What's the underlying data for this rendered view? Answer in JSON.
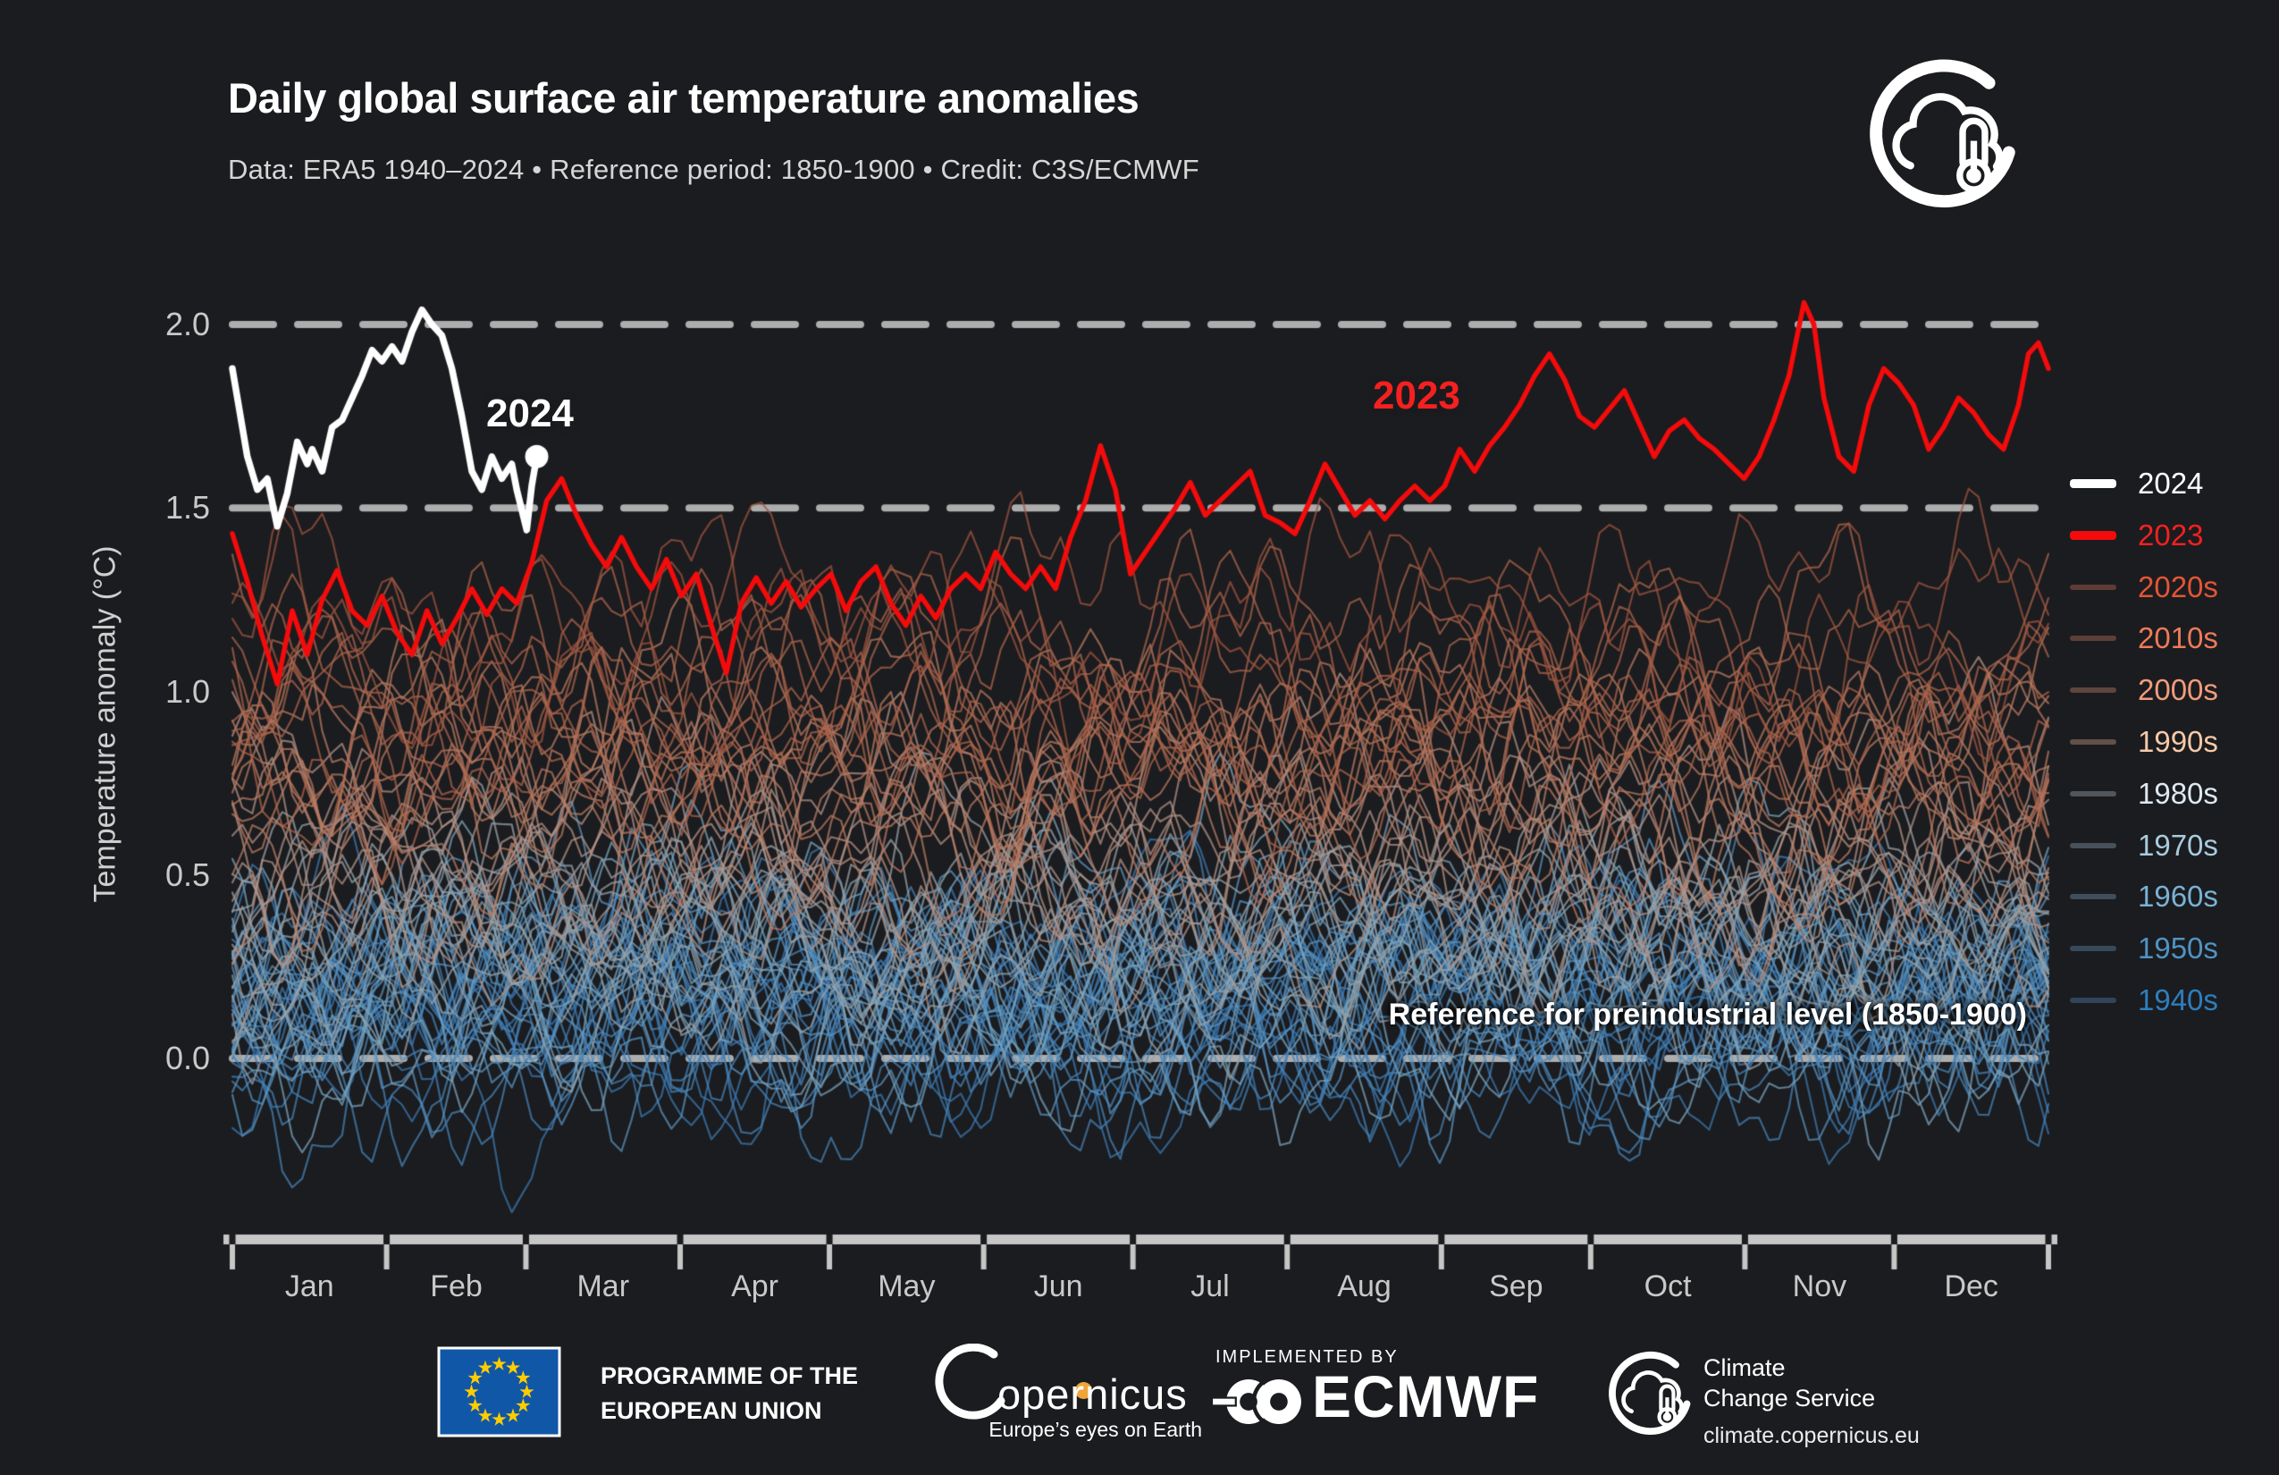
{
  "header": {
    "title": "Daily global surface air temperature anomalies",
    "subtitle": "Data: ERA5 1940–2024 • Reference period: 1850-1900 • Credit: C3S/ECMWF"
  },
  "chart_data": {
    "type": "line",
    "title": "Daily global surface air temperature anomalies",
    "ylabel": "Temperature anomaly (°C)",
    "xlabel": "",
    "x_months": [
      "Jan",
      "Feb",
      "Mar",
      "Apr",
      "May",
      "Jun",
      "Jul",
      "Aug",
      "Sep",
      "Oct",
      "Nov",
      "Dec"
    ],
    "month_boundary_days": [
      0,
      31,
      59,
      90,
      120,
      151,
      181,
      212,
      243,
      273,
      304,
      334,
      365
    ],
    "ylim": [
      -0.55,
      2.12
    ],
    "yticks": [
      2.0,
      1.5,
      1.0,
      0.5,
      0.0
    ],
    "ytick_labels": [
      "2.0",
      "1.5",
      "1.0",
      "0.5",
      "0.0"
    ],
    "reference_lines": [
      2.0,
      1.5,
      0.0
    ],
    "reference_annotation": "Reference for preindustrial level (1850-1900)",
    "grid_color": "#cdcdcd",
    "axis_color": "#c6c6c6",
    "series_2024": {
      "name": "2024",
      "color": "#ffffff",
      "line_width": 7.5,
      "end_marker": true,
      "points": [
        [
          1,
          1.88
        ],
        [
          2,
          1.8
        ],
        [
          4,
          1.64
        ],
        [
          6,
          1.55
        ],
        [
          8,
          1.58
        ],
        [
          10,
          1.45
        ],
        [
          12,
          1.54
        ],
        [
          14,
          1.68
        ],
        [
          16,
          1.62
        ],
        [
          17,
          1.66
        ],
        [
          19,
          1.6
        ],
        [
          21,
          1.72
        ],
        [
          23,
          1.74
        ],
        [
          25,
          1.8
        ],
        [
          27,
          1.86
        ],
        [
          29,
          1.93
        ],
        [
          31,
          1.9
        ],
        [
          33,
          1.94
        ],
        [
          35,
          1.9
        ],
        [
          37,
          1.98
        ],
        [
          39,
          2.04
        ],
        [
          41,
          2.0
        ],
        [
          43,
          1.97
        ],
        [
          45,
          1.88
        ],
        [
          47,
          1.75
        ],
        [
          49,
          1.6
        ],
        [
          51,
          1.55
        ],
        [
          53,
          1.64
        ],
        [
          55,
          1.58
        ],
        [
          57,
          1.62
        ],
        [
          58,
          1.55
        ],
        [
          60,
          1.44
        ],
        [
          61,
          1.56
        ],
        [
          62,
          1.64
        ]
      ]
    },
    "series_2023": {
      "name": "2023",
      "color": "#f40b0b",
      "line_width": 5.5,
      "end_marker": false,
      "points": [
        [
          1,
          1.43
        ],
        [
          4,
          1.3
        ],
        [
          7,
          1.15
        ],
        [
          10,
          1.02
        ],
        [
          13,
          1.22
        ],
        [
          16,
          1.1
        ],
        [
          19,
          1.25
        ],
        [
          22,
          1.33
        ],
        [
          25,
          1.22
        ],
        [
          28,
          1.18
        ],
        [
          31,
          1.26
        ],
        [
          34,
          1.16
        ],
        [
          37,
          1.1
        ],
        [
          40,
          1.22
        ],
        [
          43,
          1.13
        ],
        [
          46,
          1.2
        ],
        [
          49,
          1.28
        ],
        [
          52,
          1.21
        ],
        [
          55,
          1.28
        ],
        [
          58,
          1.24
        ],
        [
          61,
          1.35
        ],
        [
          64,
          1.52
        ],
        [
          67,
          1.58
        ],
        [
          70,
          1.48
        ],
        [
          73,
          1.4
        ],
        [
          76,
          1.34
        ],
        [
          79,
          1.42
        ],
        [
          82,
          1.34
        ],
        [
          85,
          1.28
        ],
        [
          88,
          1.36
        ],
        [
          91,
          1.26
        ],
        [
          94,
          1.32
        ],
        [
          97,
          1.18
        ],
        [
          100,
          1.05
        ],
        [
          103,
          1.24
        ],
        [
          106,
          1.31
        ],
        [
          109,
          1.24
        ],
        [
          112,
          1.3
        ],
        [
          115,
          1.23
        ],
        [
          118,
          1.28
        ],
        [
          121,
          1.32
        ],
        [
          124,
          1.22
        ],
        [
          127,
          1.3
        ],
        [
          130,
          1.34
        ],
        [
          133,
          1.24
        ],
        [
          136,
          1.18
        ],
        [
          139,
          1.26
        ],
        [
          142,
          1.2
        ],
        [
          145,
          1.28
        ],
        [
          148,
          1.32
        ],
        [
          151,
          1.28
        ],
        [
          154,
          1.38
        ],
        [
          157,
          1.32
        ],
        [
          160,
          1.28
        ],
        [
          163,
          1.34
        ],
        [
          166,
          1.28
        ],
        [
          169,
          1.42
        ],
        [
          172,
          1.52
        ],
        [
          175,
          1.67
        ],
        [
          178,
          1.55
        ],
        [
          181,
          1.32
        ],
        [
          184,
          1.38
        ],
        [
          187,
          1.44
        ],
        [
          190,
          1.5
        ],
        [
          193,
          1.57
        ],
        [
          196,
          1.48
        ],
        [
          199,
          1.52
        ],
        [
          202,
          1.56
        ],
        [
          205,
          1.6
        ],
        [
          208,
          1.48
        ],
        [
          211,
          1.46
        ],
        [
          214,
          1.43
        ],
        [
          217,
          1.52
        ],
        [
          220,
          1.62
        ],
        [
          223,
          1.55
        ],
        [
          226,
          1.48
        ],
        [
          229,
          1.52
        ],
        [
          232,
          1.47
        ],
        [
          235,
          1.52
        ],
        [
          238,
          1.56
        ],
        [
          241,
          1.52
        ],
        [
          244,
          1.56
        ],
        [
          247,
          1.66
        ],
        [
          250,
          1.6
        ],
        [
          253,
          1.67
        ],
        [
          256,
          1.72
        ],
        [
          259,
          1.78
        ],
        [
          262,
          1.86
        ],
        [
          265,
          1.92
        ],
        [
          268,
          1.85
        ],
        [
          271,
          1.75
        ],
        [
          274,
          1.72
        ],
        [
          277,
          1.77
        ],
        [
          280,
          1.82
        ],
        [
          283,
          1.73
        ],
        [
          286,
          1.64
        ],
        [
          289,
          1.71
        ],
        [
          292,
          1.74
        ],
        [
          295,
          1.69
        ],
        [
          298,
          1.66
        ],
        [
          301,
          1.62
        ],
        [
          304,
          1.58
        ],
        [
          307,
          1.64
        ],
        [
          310,
          1.74
        ],
        [
          313,
          1.86
        ],
        [
          316,
          2.06
        ],
        [
          318,
          2.0
        ],
        [
          320,
          1.8
        ],
        [
          323,
          1.64
        ],
        [
          326,
          1.6
        ],
        [
          329,
          1.78
        ],
        [
          332,
          1.88
        ],
        [
          335,
          1.84
        ],
        [
          338,
          1.78
        ],
        [
          341,
          1.66
        ],
        [
          344,
          1.72
        ],
        [
          347,
          1.8
        ],
        [
          350,
          1.76
        ],
        [
          353,
          1.7
        ],
        [
          356,
          1.66
        ],
        [
          359,
          1.78
        ],
        [
          361,
          1.92
        ],
        [
          363,
          1.95
        ],
        [
          365,
          1.88
        ]
      ]
    },
    "decades": [
      {
        "label": "1940s",
        "year_count": 10,
        "mean_anomaly": 0.1,
        "line_color": "#3b79b2"
      },
      {
        "label": "1950s",
        "year_count": 10,
        "mean_anomaly": 0.08,
        "line_color": "#4684b9"
      },
      {
        "label": "1960s",
        "year_count": 10,
        "mean_anomaly": 0.12,
        "line_color": "#5993c0"
      },
      {
        "label": "1970s",
        "year_count": 10,
        "mean_anomaly": 0.18,
        "line_color": "#7aa3bd"
      },
      {
        "label": "1980s",
        "year_count": 10,
        "mean_anomaly": 0.3,
        "line_color": "#9aa4a9"
      },
      {
        "label": "1990s",
        "year_count": 10,
        "mean_anomaly": 0.5,
        "line_color": "#b49386"
      },
      {
        "label": "2000s",
        "year_count": 10,
        "mean_anomaly": 0.68,
        "line_color": "#bb7c63"
      },
      {
        "label": "2010s",
        "year_count": 10,
        "mean_anomaly": 0.9,
        "line_color": "#ae654c"
      },
      {
        "label": "2020s",
        "year_count": 3,
        "mean_anomaly": 1.18,
        "line_color": "#a05540"
      }
    ],
    "noise": {
      "slow_amp": 0.13,
      "mid_amp": 0.115,
      "fast_amp": 0.095,
      "vfast_amp": 0.06,
      "year_spread": 0.16
    }
  },
  "annotations": {
    "label_2024": "2024",
    "label_2023": "2023"
  },
  "legend": {
    "items": [
      {
        "label": "2024",
        "text_color": "#ffffff",
        "swatch_color": "#ffffff",
        "swatch_height": 10
      },
      {
        "label": "2023",
        "text_color": "#f52020",
        "swatch_color": "#f40b0b",
        "swatch_height": 10
      },
      {
        "label": "2020s",
        "text_color": "#e45535",
        "swatch_color": "#5e3c34",
        "swatch_height": 6
      },
      {
        "label": "2010s",
        "text_color": "#ee7a5a",
        "swatch_color": "#5c4038",
        "swatch_height": 6
      },
      {
        "label": "2000s",
        "text_color": "#f29c7c",
        "swatch_color": "#5e453e",
        "swatch_height": 6
      },
      {
        "label": "1990s",
        "text_color": "#f7c9a9",
        "swatch_color": "#615149",
        "swatch_height": 6
      },
      {
        "label": "1980s",
        "text_color": "#dee8f0",
        "swatch_color": "#4f565c",
        "swatch_height": 6
      },
      {
        "label": "1970s",
        "text_color": "#a9cbde",
        "swatch_color": "#475159",
        "swatch_height": 6
      },
      {
        "label": "1960s",
        "text_color": "#79b2d5",
        "swatch_color": "#3f4e5c",
        "swatch_height": 6
      },
      {
        "label": "1950s",
        "text_color": "#4f93c5",
        "swatch_color": "#374a5b",
        "swatch_height": 6
      },
      {
        "label": "1940s",
        "text_color": "#2e7ebd",
        "swatch_color": "#30445a",
        "swatch_height": 6
      }
    ]
  },
  "footer": {
    "eu": {
      "line1": "PROGRAMME OF THE",
      "line2": "EUROPEAN UNION",
      "flag_blue": "#1057a8",
      "star_yellow": "#ffcc00"
    },
    "copernicus": {
      "word": "opernicus",
      "tagline": "Europe’s eyes on Earth"
    },
    "ecmwf": {
      "implemented_by": "IMPLEMENTED BY",
      "name": "ECMWF"
    },
    "c3s": {
      "line1": "Climate",
      "line2": "Change Service",
      "url": "climate.copernicus.eu"
    }
  },
  "colors": {
    "background": "#1b1c1f",
    "title": "#ffffff",
    "subtitle": "#d6d6d6",
    "tick_text": "#c9c9c9"
  }
}
